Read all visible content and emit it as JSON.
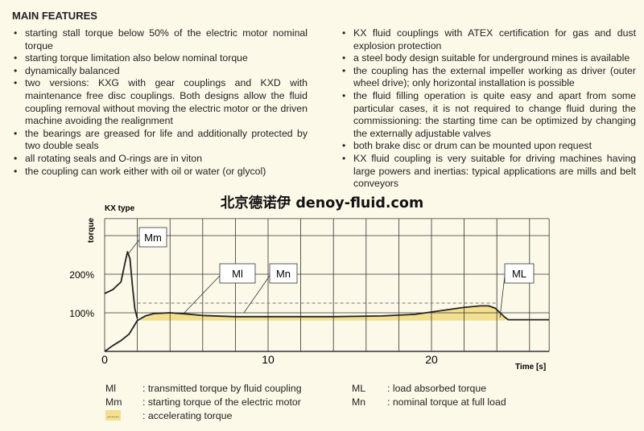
{
  "heading": "MAIN FEATURES",
  "left_bullets": [
    "starting stall torque below 50% of the electric motor nominal torque",
    "starting torque limitation also below nominal torque",
    "dynamically balanced",
    "two versions: KXG with gear couplings and KXD with maintenance free disc couplings. Both designs allow the fluid coupling removal without moving the electric motor or the driven machine avoiding the realignment",
    "the bearings are greased for life and additionally protected by two double seals",
    "all rotating seals and O-rings are in viton",
    "the coupling can work either with oil or water (or glycol)"
  ],
  "right_bullets": [
    "KX fluid couplings with ATEX certification for gas and dust explosion protection",
    "a steel body design suitable for underground mines is available",
    "the coupling has the external impeller working as driver (outer wheel drive); only horizontal installation is possible",
    "the fluid filling operation is quite easy and apart from some particular cases, it is not required to change fluid during the commissioning: the starting time can be optimized by changing the externally adjustable valves",
    "both brake disc or drum can be mounted upon request",
    "KX fluid coupling is very suitable for driving machines having large powers and inertias: typical applications are mills and belt conveyors"
  ],
  "watermark": "北京德诺伊 denoy-fluid.com",
  "chart_data": {
    "type": "line",
    "title": "KX type",
    "xlabel": "Time [s]",
    "ylabel": "torque",
    "xlim": [
      0,
      27.2
    ],
    "ylim": [
      0,
      344
    ],
    "x_ticks": [
      {
        "v": 0,
        "label": "0"
      },
      {
        "v": 10,
        "label": "10"
      },
      {
        "v": 20,
        "label": "20"
      }
    ],
    "y_ticks": [
      {
        "v": 100,
        "label": "100%"
      },
      {
        "v": 200,
        "label": "200%"
      }
    ],
    "grid": true,
    "series": [
      {
        "name": "Mm",
        "style": "solid",
        "x": [
          0,
          0.5,
          1.0,
          1.25,
          1.4,
          1.55,
          1.7,
          1.85,
          2.0
        ],
        "y": [
          150,
          160,
          180,
          230,
          258,
          240,
          170,
          110,
          85
        ]
      },
      {
        "name": "Ml",
        "style": "solid",
        "x": [
          0,
          0.5,
          1.0,
          1.5,
          2.0,
          2.5,
          3,
          4,
          5,
          6,
          8,
          10,
          14,
          17,
          19,
          20,
          21,
          22,
          23,
          23.5,
          23.9,
          24.2,
          24.5,
          24.7,
          27.2
        ],
        "y": [
          0,
          15,
          28,
          45,
          80,
          92,
          98,
          100,
          97,
          93,
          90,
          90,
          90,
          92,
          96,
          102,
          108,
          114,
          118,
          118,
          112,
          100,
          88,
          82,
          82
        ]
      },
      {
        "name": "Mn",
        "style": "dashed",
        "x": [
          2,
          24
        ],
        "y": [
          125,
          125
        ]
      }
    ],
    "accelerating_fill_base": 80,
    "accelerating_fill_range": [
      2.2,
      24.5
    ],
    "labels": [
      "Mm",
      "Ml",
      "Mn",
      "ML"
    ],
    "fill_color": "#f3df90",
    "line_color": "#222222",
    "grid_color": "#333333"
  },
  "legend": [
    {
      "key": "Ml",
      "text": ": transmitted torque by fluid coupling"
    },
    {
      "key": "Mm",
      "text": ": starting torque of the electric motor"
    },
    {
      "key": "......",
      "text": ": accelerating torque"
    },
    {
      "key": "ML",
      "text": ": load absorbed torque"
    },
    {
      "key": "Mn",
      "text": ": nominal torque at full load"
    }
  ]
}
